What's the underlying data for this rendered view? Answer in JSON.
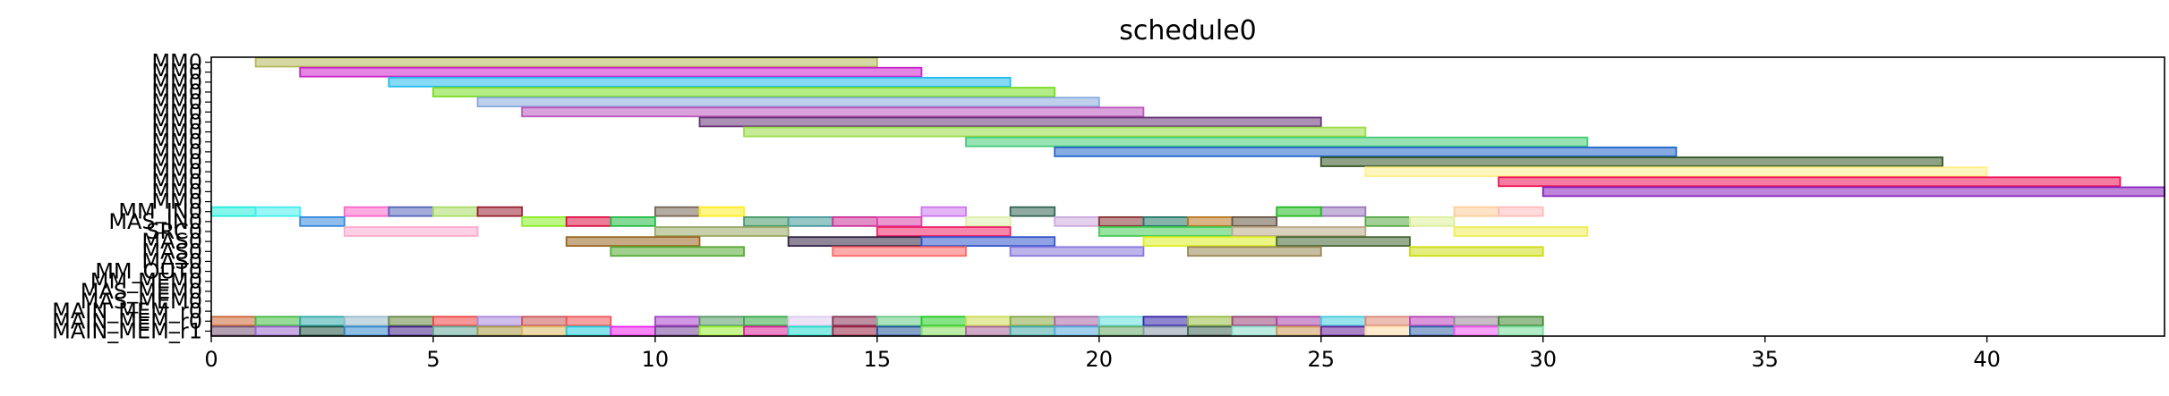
{
  "chart_data": {
    "type": "gantt",
    "title": "schedule0",
    "xlim": [
      0,
      44
    ],
    "xticks": [
      0,
      5,
      10,
      15,
      20,
      25,
      30,
      35,
      40
    ],
    "row_labels": [
      "MM0",
      "MM0",
      "MM0",
      "MM0",
      "MM0",
      "MM0",
      "MM0",
      "MM0",
      "MM0",
      "MM0",
      "MM0",
      "MM0",
      "MM0",
      "MM0",
      "MM0",
      "MM_IN0",
      "MAS_IN0",
      "SRC0",
      "MAS0",
      "MAS0",
      "MAS0",
      "MM_OUT0",
      "MM_MEM0",
      "MAS_MEM0",
      "MAS_MEM0",
      "MAIN_MEM_r0",
      "MAIN_MEM_r0",
      "MAIN_MEM_r1"
    ],
    "tasks": [
      {
        "row": 0,
        "start": 1,
        "end": 15,
        "color": "#b5b858"
      },
      {
        "row": 1,
        "start": 2,
        "end": 16,
        "color": "#cc22cc"
      },
      {
        "row": 2,
        "start": 4,
        "end": 18,
        "color": "#22bbee"
      },
      {
        "row": 3,
        "start": 5,
        "end": 19,
        "color": "#77dd22"
      },
      {
        "row": 4,
        "start": 6,
        "end": 20,
        "color": "#88aadd"
      },
      {
        "row": 5,
        "start": 7,
        "end": 21,
        "color": "#bb55bb"
      },
      {
        "row": 6,
        "start": 11,
        "end": 25,
        "color": "#663377"
      },
      {
        "row": 7,
        "start": 12,
        "end": 26,
        "color": "#99dd44"
      },
      {
        "row": 8,
        "start": 17,
        "end": 31,
        "color": "#44cc77"
      },
      {
        "row": 9,
        "start": 19,
        "end": 33,
        "color": "#2266cc"
      },
      {
        "row": 10,
        "start": 25,
        "end": 39,
        "color": "#335522"
      },
      {
        "row": 11,
        "start": 26,
        "end": 40,
        "color": "#ffee88"
      },
      {
        "row": 12,
        "start": 29,
        "end": 43,
        "color": "#ee1155"
      },
      {
        "row": 13,
        "start": 30,
        "end": 44,
        "color": "#8822bb"
      },
      {
        "row": 15,
        "start": 0,
        "end": 1,
        "color": "#22eedd"
      },
      {
        "row": 15,
        "start": 1,
        "end": 2,
        "color": "#44eeee"
      },
      {
        "row": 15,
        "start": 3,
        "end": 4,
        "color": "#ff66cc"
      },
      {
        "row": 15,
        "start": 4,
        "end": 5,
        "color": "#5566bb"
      },
      {
        "row": 15,
        "start": 5,
        "end": 6,
        "color": "#aadd66"
      },
      {
        "row": 15,
        "start": 6,
        "end": 7,
        "color": "#992233"
      },
      {
        "row": 15,
        "start": 10,
        "end": 11,
        "color": "#776655"
      },
      {
        "row": 15,
        "start": 11,
        "end": 12,
        "color": "#ffee22"
      },
      {
        "row": 15,
        "start": 16,
        "end": 17,
        "color": "#cc77ee"
      },
      {
        "row": 15,
        "start": 18,
        "end": 19,
        "color": "#336655"
      },
      {
        "row": 15,
        "start": 25,
        "end": 26,
        "color": "#9977bb"
      },
      {
        "row": 15,
        "start": 28,
        "end": 29,
        "color": "#ffcc99"
      },
      {
        "row": 15,
        "start": 29,
        "end": 30,
        "color": "#ffbbbb"
      },
      {
        "row": 15,
        "start": 24,
        "end": 25,
        "color": "#22bb22"
      },
      {
        "row": 16,
        "start": 2,
        "end": 3,
        "color": "#3388dd"
      },
      {
        "row": 16,
        "start": 7,
        "end": 8,
        "color": "#88ee22"
      },
      {
        "row": 16,
        "start": 8,
        "end": 9,
        "color": "#dd1144"
      },
      {
        "row": 16,
        "start": 9,
        "end": 10,
        "color": "#22bb44"
      },
      {
        "row": 16,
        "start": 12,
        "end": 13,
        "color": "#449966"
      },
      {
        "row": 16,
        "start": 13,
        "end": 14,
        "color": "#449999"
      },
      {
        "row": 16,
        "start": 14,
        "end": 15,
        "color": "#cc3399"
      },
      {
        "row": 16,
        "start": 15,
        "end": 16,
        "color": "#dd44aa"
      },
      {
        "row": 16,
        "start": 17,
        "end": 18,
        "color": "#ddeeaa"
      },
      {
        "row": 16,
        "start": 19,
        "end": 20,
        "color": "#ccaadd"
      },
      {
        "row": 16,
        "start": 20,
        "end": 21,
        "color": "#883333"
      },
      {
        "row": 16,
        "start": 21,
        "end": 22,
        "color": "#227766"
      },
      {
        "row": 16,
        "start": 22,
        "end": 23,
        "color": "#bb7722"
      },
      {
        "row": 16,
        "start": 23,
        "end": 24,
        "color": "#665544"
      },
      {
        "row": 16,
        "start": 26,
        "end": 27,
        "color": "#55aa44"
      },
      {
        "row": 16,
        "start": 27,
        "end": 28,
        "color": "#ddee99"
      },
      {
        "row": 17,
        "start": 3,
        "end": 6,
        "color": "#ffaacc"
      },
      {
        "row": 17,
        "start": 10,
        "end": 13,
        "color": "#99aa66"
      },
      {
        "row": 17,
        "start": 15,
        "end": 18,
        "color": "#ee2266"
      },
      {
        "row": 17,
        "start": 20,
        "end": 23,
        "color": "#44cc55"
      },
      {
        "row": 17,
        "start": 23,
        "end": 26,
        "color": "#bbaa88"
      },
      {
        "row": 17,
        "start": 28,
        "end": 31,
        "color": "#eeee55"
      },
      {
        "row": 18,
        "start": 8,
        "end": 11,
        "color": "#996622"
      },
      {
        "row": 18,
        "start": 13,
        "end": 16,
        "color": "#332244"
      },
      {
        "row": 18,
        "start": 16,
        "end": 19,
        "color": "#3355cc"
      },
      {
        "row": 18,
        "start": 21,
        "end": 24,
        "color": "#ddee22"
      },
      {
        "row": 18,
        "start": 24,
        "end": 27,
        "color": "#446633"
      },
      {
        "row": 19,
        "start": 9,
        "end": 12,
        "color": "#55aa33"
      },
      {
        "row": 19,
        "start": 14,
        "end": 17,
        "color": "#ff6666"
      },
      {
        "row": 19,
        "start": 18,
        "end": 21,
        "color": "#8877dd"
      },
      {
        "row": 19,
        "start": 22,
        "end": 25,
        "color": "#998855"
      },
      {
        "row": 19,
        "start": 27,
        "end": 30,
        "color": "#ccdd11"
      },
      {
        "row": 26,
        "start": 0,
        "end": 1,
        "color": "#cc6633"
      },
      {
        "row": 26,
        "start": 1,
        "end": 2,
        "color": "#44bb44"
      },
      {
        "row": 26,
        "start": 2,
        "end": 3,
        "color": "#33aaaa"
      },
      {
        "row": 26,
        "start": 3,
        "end": 4,
        "color": "#99bbcc"
      },
      {
        "row": 26,
        "start": 4,
        "end": 5,
        "color": "#668844"
      },
      {
        "row": 26,
        "start": 5,
        "end": 6,
        "color": "#ee4444"
      },
      {
        "row": 26,
        "start": 6,
        "end": 7,
        "color": "#aa88dd"
      },
      {
        "row": 26,
        "start": 7,
        "end": 8,
        "color": "#cc5555"
      },
      {
        "row": 26,
        "start": 8,
        "end": 9,
        "color": "#ee5555"
      },
      {
        "row": 26,
        "start": 10,
        "end": 11,
        "color": "#aa44cc"
      },
      {
        "row": 26,
        "start": 11,
        "end": 12,
        "color": "#559966"
      },
      {
        "row": 26,
        "start": 12,
        "end": 13,
        "color": "#33aa44"
      },
      {
        "row": 26,
        "start": 13,
        "end": 14,
        "color": "#ddccee"
      },
      {
        "row": 26,
        "start": 14,
        "end": 15,
        "color": "#883355"
      },
      {
        "row": 26,
        "start": 15,
        "end": 16,
        "color": "#66cc88"
      },
      {
        "row": 26,
        "start": 16,
        "end": 17,
        "color": "#22cc22"
      },
      {
        "row": 26,
        "start": 17,
        "end": 18,
        "color": "#ccdd55"
      },
      {
        "row": 26,
        "start": 18,
        "end": 19,
        "color": "#88aa44"
      },
      {
        "row": 26,
        "start": 19,
        "end": 20,
        "color": "#aa66aa"
      },
      {
        "row": 26,
        "start": 20,
        "end": 21,
        "color": "#66dddd"
      },
      {
        "row": 26,
        "start": 21,
        "end": 22,
        "color": "#3322aa"
      },
      {
        "row": 26,
        "start": 22,
        "end": 23,
        "color": "#99bb44"
      },
      {
        "row": 26,
        "start": 23,
        "end": 24,
        "color": "#994477"
      },
      {
        "row": 26,
        "start": 24,
        "end": 25,
        "color": "#aa44aa"
      },
      {
        "row": 26,
        "start": 25,
        "end": 26,
        "color": "#44ccdd"
      },
      {
        "row": 26,
        "start": 26,
        "end": 27,
        "color": "#dd8877"
      },
      {
        "row": 26,
        "start": 27,
        "end": 28,
        "color": "#bb44bb"
      },
      {
        "row": 26,
        "start": 28,
        "end": 29,
        "color": "#998899"
      },
      {
        "row": 26,
        "start": 29,
        "end": 30,
        "color": "#448833"
      },
      {
        "row": 27,
        "start": 0,
        "end": 1,
        "color": "#775577"
      },
      {
        "row": 27,
        "start": 1,
        "end": 2,
        "color": "#9966cc"
      },
      {
        "row": 27,
        "start": 2,
        "end": 3,
        "color": "#225544"
      },
      {
        "row": 27,
        "start": 3,
        "end": 4,
        "color": "#3388cc"
      },
      {
        "row": 27,
        "start": 4,
        "end": 5,
        "color": "#442288"
      },
      {
        "row": 27,
        "start": 5,
        "end": 6,
        "color": "#66aa99"
      },
      {
        "row": 27,
        "start": 6,
        "end": 7,
        "color": "#aa9944"
      },
      {
        "row": 27,
        "start": 7,
        "end": 8,
        "color": "#ddbb66"
      },
      {
        "row": 27,
        "start": 8,
        "end": 9,
        "color": "#22ccdd"
      },
      {
        "row": 27,
        "start": 9,
        "end": 10,
        "color": "#ee22ee"
      },
      {
        "row": 27,
        "start": 10,
        "end": 11,
        "color": "#774499"
      },
      {
        "row": 27,
        "start": 11,
        "end": 12,
        "color": "#99ee33"
      },
      {
        "row": 27,
        "start": 12,
        "end": 13,
        "color": "#dd2299"
      },
      {
        "row": 27,
        "start": 13,
        "end": 14,
        "color": "#22ddcc"
      },
      {
        "row": 27,
        "start": 14,
        "end": 15,
        "color": "#992244"
      },
      {
        "row": 27,
        "start": 15,
        "end": 16,
        "color": "#225599"
      },
      {
        "row": 27,
        "start": 16,
        "end": 17,
        "color": "#88dd66"
      },
      {
        "row": 27,
        "start": 17,
        "end": 18,
        "color": "#aa6699"
      },
      {
        "row": 27,
        "start": 18,
        "end": 19,
        "color": "#44aaaa"
      },
      {
        "row": 27,
        "start": 19,
        "end": 20,
        "color": "#55aadd"
      },
      {
        "row": 27,
        "start": 20,
        "end": 21,
        "color": "#66aa66"
      },
      {
        "row": 27,
        "start": 21,
        "end": 22,
        "color": "#8899aa"
      },
      {
        "row": 27,
        "start": 22,
        "end": 23,
        "color": "#446655"
      },
      {
        "row": 27,
        "start": 23,
        "end": 24,
        "color": "#88ddcc"
      },
      {
        "row": 27,
        "start": 24,
        "end": 25,
        "color": "#cc9955"
      },
      {
        "row": 27,
        "start": 25,
        "end": 26,
        "color": "#662299"
      },
      {
        "row": 27,
        "start": 26,
        "end": 27,
        "color": "#ffddaa"
      },
      {
        "row": 27,
        "start": 27,
        "end": 28,
        "color": "#3366aa"
      },
      {
        "row": 27,
        "start": 28,
        "end": 29,
        "color": "#ee55ee"
      },
      {
        "row": 27,
        "start": 29,
        "end": 30,
        "color": "#77dd99"
      }
    ]
  }
}
